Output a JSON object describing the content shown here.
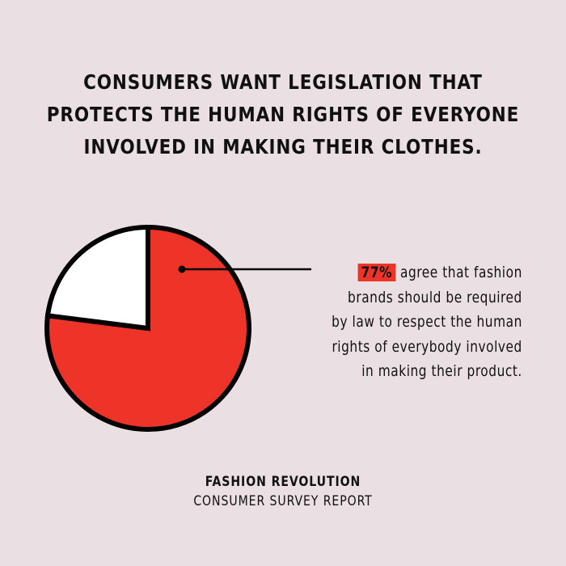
{
  "title_lines": [
    "CONSUMERS WANT LEGISLATION THAT",
    "PROTECTS THE HUMAN RIGHTS OF EVERYONE",
    "INVOLVED IN MAKING THEIR CLOTHES."
  ],
  "chart_data": {
    "type": "pie",
    "slices": [
      {
        "label": "agree",
        "value": 77,
        "color": "#ee3429"
      },
      {
        "label": "other",
        "value": 23,
        "color": "#ffffff"
      }
    ],
    "start_angle": "12 o'clock, clockwise",
    "outline_color": "#000000"
  },
  "callout": {
    "percent": "77%",
    "lines": [
      "agree that fashion",
      "brands should be required",
      "by law to respect the human",
      "rights of everybody involved",
      "in making their product."
    ]
  },
  "footer": {
    "org": "FASHION REVOLUTION",
    "report": "CONSUMER SURVEY REPORT"
  },
  "colors": {
    "background": "#eadfe2",
    "accent": "#ee3429"
  }
}
